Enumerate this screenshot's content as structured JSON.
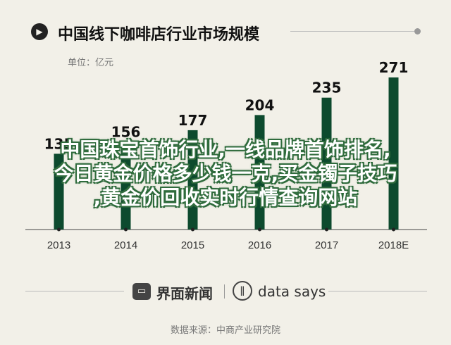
{
  "title": "中国线下咖啡店行业市场规模",
  "unit": "单位：亿元",
  "headline": [
    "中国珠宝首饰行业,一线品牌首饰排名,",
    "今日黄金价格多少钱一克,买金镯子技巧",
    ",黄金价回收实时行情查询网站"
  ],
  "brands": {
    "left": "界面新闻",
    "right": "data says"
  },
  "source": "数据来源：中商产业研究院",
  "colors": {
    "bar": "#0d4a2e",
    "background": "#f2f0e8",
    "axis": "#444444"
  },
  "icons": {
    "title_marker": "play-circle-icon",
    "brand_left": "news-logo-icon",
    "brand_right": "sound-wave-icon"
  },
  "chart_data": {
    "type": "bar",
    "categories": [
      "2013",
      "2014",
      "2015",
      "2016",
      "2017",
      "2018E"
    ],
    "values": [
      135,
      156,
      177,
      204,
      235,
      271
    ],
    "ylabel": "单位：亿元",
    "grid": false,
    "legend": "none"
  }
}
